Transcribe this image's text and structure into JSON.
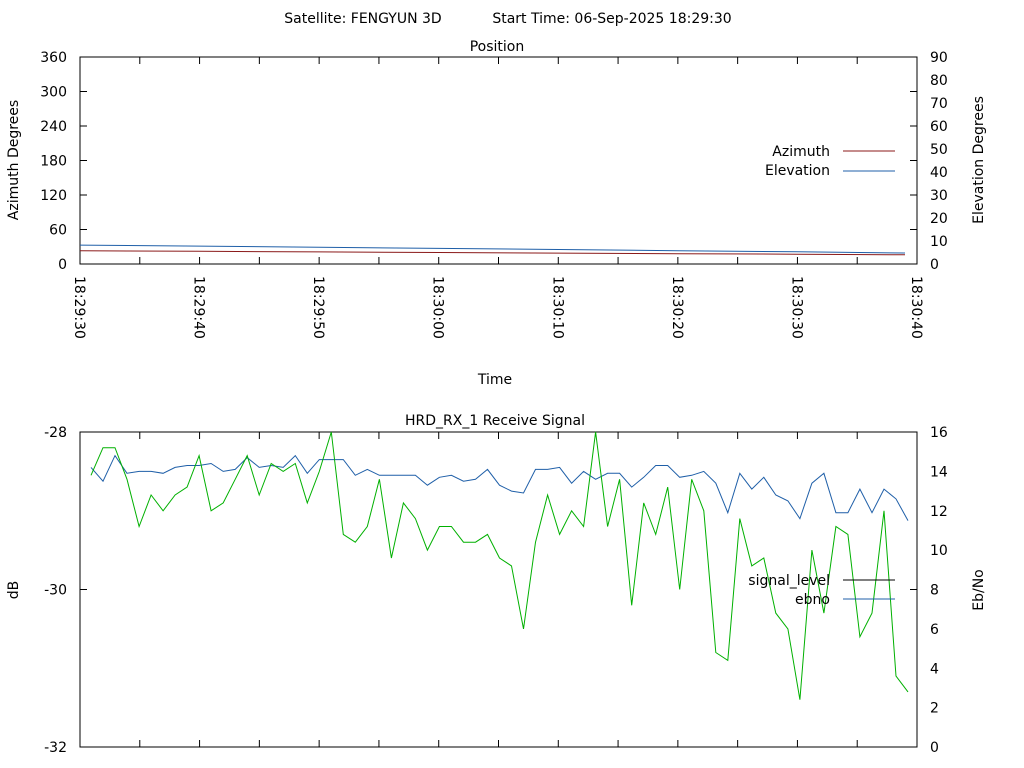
{
  "header": {
    "satellite": "Satellite: FENGYUN 3D",
    "start_time": "Start Time: 06-Sep-2025 18:29:30"
  },
  "colors": {
    "azimuth": "#8b1a1a",
    "elevation": "#1f5fa8",
    "signal_level": "#000000",
    "ebno": "#1f5fa8",
    "signal_trace": "#00b000"
  },
  "chart_data": [
    {
      "type": "line",
      "title": "Position",
      "xlabel": "Time",
      "ylabel": "Azimuth Degrees",
      "y2label": "Elevation Degrees",
      "ylim": [
        0,
        360
      ],
      "y2lim": [
        0,
        90
      ],
      "yticks": [
        "0",
        "60",
        "120",
        "180",
        "240",
        "300",
        "360"
      ],
      "y2ticks": [
        "0",
        "10",
        "20",
        "30",
        "40",
        "50",
        "60",
        "70",
        "80",
        "90"
      ],
      "xticks": [
        "18:29:30",
        "18:29:40",
        "18:29:50",
        "18:30:00",
        "18:30:10",
        "18:30:20",
        "18:30:30",
        "18:30:40"
      ],
      "xlim": [
        0,
        70
      ],
      "legend_position": "right",
      "series": [
        {
          "name": "Azimuth",
          "axis": "left",
          "x": [
            0,
            10,
            20,
            30,
            40,
            50,
            60,
            69
          ],
          "values": [
            23,
            22,
            21,
            20,
            19,
            18,
            17,
            16
          ]
        },
        {
          "name": "Elevation",
          "axis": "right",
          "x": [
            0,
            10,
            20,
            30,
            40,
            50,
            60,
            69
          ],
          "values": [
            8.2,
            7.8,
            7.3,
            6.8,
            6.3,
            5.8,
            5.3,
            4.8
          ]
        }
      ]
    },
    {
      "type": "line",
      "title": "HRD_RX_1 Receive Signal",
      "ylabel": "dB",
      "y2label": "Eb/No",
      "ylim": [
        -32,
        -28
      ],
      "y2lim": [
        0,
        16
      ],
      "yticks": [
        "-32",
        "-30",
        "-28"
      ],
      "y2ticks": [
        "0",
        "2",
        "4",
        "6",
        "8",
        "10",
        "12",
        "14",
        "16"
      ],
      "xlim": [
        0,
        70
      ],
      "legend_position": "right",
      "legend": [
        "signal_level",
        "ebno"
      ],
      "series": [
        {
          "name": "ebno",
          "axis": "right",
          "values": [
            14.2,
            13.5,
            14.8,
            13.9,
            14.0,
            14.0,
            13.9,
            14.2,
            14.3,
            14.3,
            14.4,
            14.0,
            14.1,
            14.7,
            14.2,
            14.3,
            14.2,
            14.8,
            13.9,
            14.6,
            14.6,
            14.6,
            13.8,
            14.1,
            13.8,
            13.8,
            13.8,
            13.8,
            13.3,
            13.7,
            13.8,
            13.5,
            13.6,
            14.1,
            13.3,
            13.0,
            12.9,
            14.1,
            14.1,
            14.2,
            13.4,
            14.0,
            13.6,
            13.9,
            13.9,
            13.2,
            13.7,
            14.3,
            14.3,
            13.7,
            13.8,
            14.0,
            13.4,
            11.9,
            13.9,
            13.1,
            13.7,
            12.8,
            12.5,
            11.6,
            13.4,
            13.9,
            11.9,
            11.9,
            13.1,
            11.9,
            13.1,
            12.6,
            11.5
          ]
        },
        {
          "name": "",
          "axis": "left",
          "values": [
            -28.55,
            -28.2,
            -28.2,
            -28.6,
            -29.2,
            -28.8,
            -29.0,
            -28.8,
            -28.7,
            -28.3,
            -29.0,
            -28.9,
            -28.6,
            -28.3,
            -28.8,
            -28.4,
            -28.5,
            -28.4,
            -28.9,
            -28.5,
            -28.0,
            -29.3,
            -29.4,
            -29.2,
            -28.6,
            -29.6,
            -28.9,
            -29.1,
            -29.5,
            -29.2,
            -29.2,
            -29.4,
            -29.4,
            -29.3,
            -29.6,
            -29.7,
            -30.5,
            -29.4,
            -28.8,
            -29.3,
            -29.0,
            -29.2,
            -28.0,
            -29.2,
            -28.6,
            -30.2,
            -28.9,
            -29.3,
            -28.7,
            -30.0,
            -28.6,
            -29.0,
            -30.8,
            -30.9,
            -29.1,
            -29.7,
            -29.6,
            -30.3,
            -30.5,
            -31.4,
            -29.5,
            -30.3,
            -29.2,
            -29.3,
            -30.6,
            -30.3,
            -29.0,
            -31.1,
            -31.3
          ]
        }
      ]
    }
  ]
}
